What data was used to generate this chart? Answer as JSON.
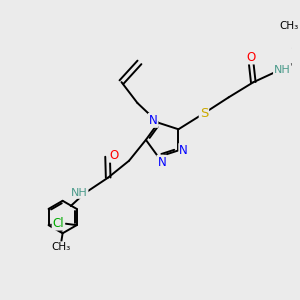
{
  "background_color": "#ebebeb",
  "atom_colors": {
    "N": "#0000ff",
    "O": "#ff0000",
    "S": "#ccaa00",
    "Cl": "#00aa00",
    "C": "#000000",
    "H": "#4a9a8a"
  },
  "bond_color": "#000000",
  "bond_width": 1.4,
  "font_size_atom": 8.5,
  "font_size_small": 7.5,
  "xlim": [
    0,
    10
  ],
  "ylim": [
    0,
    10
  ]
}
